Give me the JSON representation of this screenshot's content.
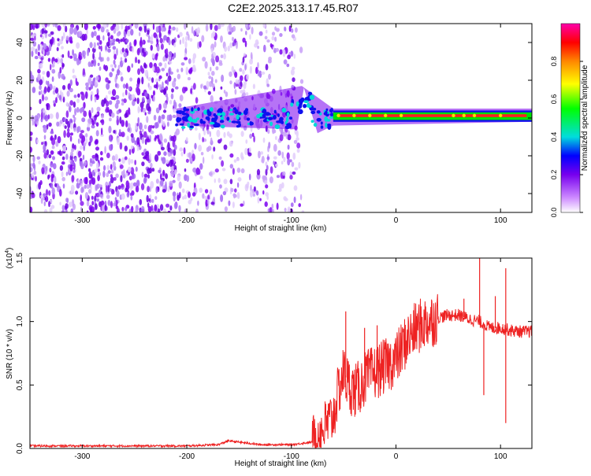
{
  "title": "C2E2.2025.313.17.45.R07",
  "chart_data": [
    {
      "type": "heatmap",
      "title": "C2E2.2025.313.17.45.R07",
      "xlabel": "Height of straight line (km)",
      "ylabel": "Frequency (Hz)",
      "xlim": [
        -350,
        130
      ],
      "ylim": [
        -50,
        50
      ],
      "xticks": [
        -300,
        -200,
        -100,
        0,
        100
      ],
      "yticks": [
        -40,
        -20,
        0,
        20,
        40
      ],
      "xtick_labels": [
        "-300",
        "-200",
        "-100",
        "0",
        "100"
      ],
      "ytick_labels": [
        "-40",
        "-20",
        "0",
        "20",
        "40"
      ],
      "colorbar": {
        "label": "Normalized spectral amplitude",
        "range": [
          0,
          1
        ],
        "ticks": [
          0.0,
          0.2,
          0.4,
          0.6,
          0.8
        ],
        "tick_labels": [
          "0.0",
          "0.2",
          "0.4",
          "0.6",
          "0.8"
        ],
        "colors": [
          "#ffffff",
          "#cc88ff",
          "#7700ee",
          "#0000ff",
          "#00dddd",
          "#00ff00",
          "#ffff00",
          "#ff8800",
          "#ff0000",
          "#ff00aa"
        ]
      },
      "regions": [
        {
          "description": "scattered noise",
          "x_range": [
            -350,
            -90
          ],
          "y_range": [
            -50,
            50
          ]
        },
        {
          "description": "signal band near 0 Hz",
          "x_range": [
            -210,
            130
          ],
          "y_center": 1
        }
      ]
    },
    {
      "type": "line",
      "xlabel": "Height of straight line (km)",
      "ylabel": "SNR (10 * v/v)",
      "scale_label": "(x10^4)",
      "scale_base": "(x10",
      "scale_exp": "4",
      "scale_tail": ")",
      "xlim": [
        -350,
        130
      ],
      "ylim": [
        0,
        1.5
      ],
      "xticks": [
        -300,
        -200,
        -100,
        0,
        100
      ],
      "yticks": [
        0.0,
        0.5,
        1.0,
        1.5
      ],
      "xtick_labels": [
        "-300",
        "-200",
        "-100",
        "0",
        "100"
      ],
      "ytick_labels": [
        "0.0",
        "0.5",
        "1.0",
        "1.5"
      ],
      "series_color": "#ee2222",
      "series": [
        {
          "name": "SNR",
          "x": [
            -350,
            -300,
            -250,
            -200,
            -170,
            -160,
            -130,
            -100,
            -80,
            -70,
            -60,
            -55,
            -50,
            -45,
            -40,
            -35,
            -30,
            -20,
            -10,
            0,
            10,
            20,
            30,
            40,
            50,
            60,
            70,
            80,
            90,
            100,
            110,
            120,
            130
          ],
          "y": [
            0.02,
            0.02,
            0.02,
            0.02,
            0.03,
            0.06,
            0.03,
            0.03,
            0.05,
            0.15,
            0.25,
            0.45,
            0.6,
            0.5,
            0.45,
            0.48,
            0.55,
            0.6,
            0.65,
            0.7,
            0.85,
            0.95,
            1.0,
            1.03,
            1.05,
            1.05,
            1.02,
            1.0,
            0.95,
            0.95,
            0.93,
            0.92,
            0.92
          ]
        }
      ],
      "spikes": [
        {
          "x": -48,
          "y": 1.08
        },
        {
          "x": -30,
          "y": 0.95
        },
        {
          "x": -18,
          "y": 0.97
        },
        {
          "x": 65,
          "y": 1.18
        },
        {
          "x": 80,
          "y": 1.5
        },
        {
          "x": 84,
          "y": 0.42
        },
        {
          "x": 95,
          "y": 1.2
        },
        {
          "x": 105,
          "y": 0.2
        },
        {
          "x": 105,
          "y": 1.42
        }
      ]
    }
  ]
}
